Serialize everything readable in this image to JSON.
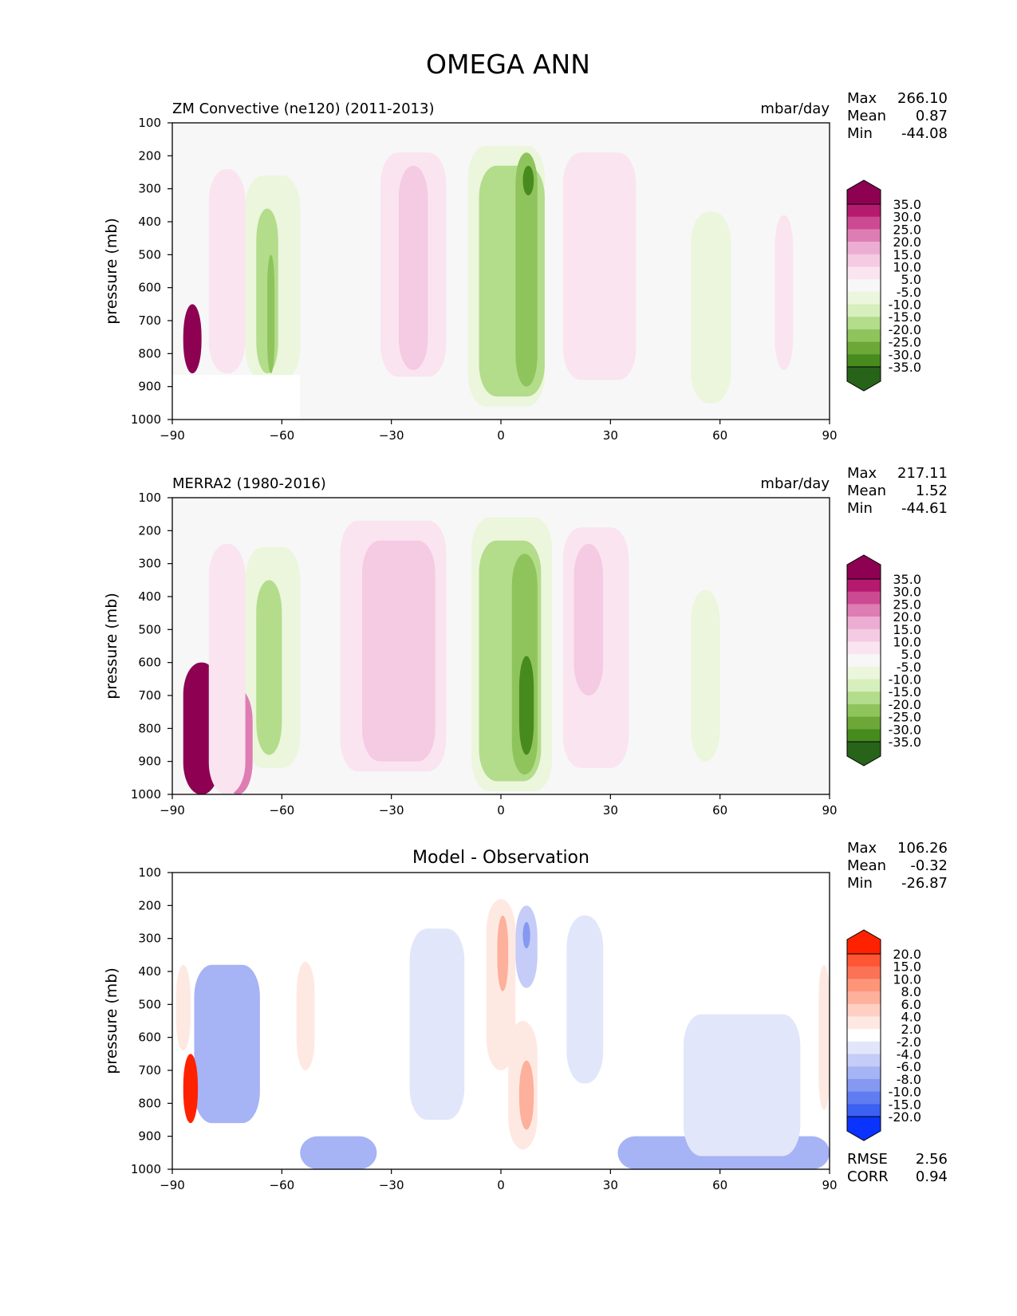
{
  "chart_data": {
    "type": "heatmap",
    "title": "OMEGA ANN",
    "panels": [
      {
        "title": "ZM Convective (ne120) (2011-2013)",
        "units": "mbar/day",
        "ylabel": "pressure (mb)",
        "x_ticks": [
          "−90",
          "−60",
          "−30",
          "0",
          "30",
          "60",
          "90"
        ],
        "y_ticks": [
          "100",
          "200",
          "300",
          "400",
          "500",
          "600",
          "700",
          "800",
          "900",
          "1000"
        ],
        "xlim": [
          -90,
          90
        ],
        "ylim": [
          1000,
          100
        ],
        "stats": [
          {
            "label": "Max",
            "value": "266.10"
          },
          {
            "label": "Mean",
            "value": "0.87"
          },
          {
            "label": "Min",
            "value": "-44.08"
          }
        ],
        "colorbar": [
          "35.0",
          "30.0",
          "25.0",
          "20.0",
          "15.0",
          "10.0",
          "5.0",
          "-5.0",
          "-10.0",
          "-15.0",
          "-20.0",
          "-25.0",
          "-30.0",
          "-35.0"
        ],
        "colors": [
          "#8e0152",
          "#b51a6f",
          "#cc4a91",
          "#de7db3",
          "#ecadd2",
          "#f5cae3",
          "#fae4f0",
          "#f7f7f7",
          "#ebf6dc",
          "#d6efbd",
          "#b3dc8b",
          "#8fc45c",
          "#6ca737",
          "#478b1f",
          "#276419"
        ],
        "features": [
          {
            "x": [
              -33,
              -15
            ],
            "p": [
              190,
              870
            ],
            "value": 7
          },
          {
            "x": [
              -28,
              -20
            ],
            "p": [
              230,
              850
            ],
            "value": 13
          },
          {
            "x": [
              -70,
              -55
            ],
            "p": [
              260,
              880
            ],
            "value": -8
          },
          {
            "x": [
              -67,
              -61
            ],
            "p": [
              360,
              860
            ],
            "value": -15
          },
          {
            "x": [
              -64,
              -62
            ],
            "p": [
              500,
              860
            ],
            "value": -22
          },
          {
            "x": [
              -9,
              12
            ],
            "p": [
              170,
              960
            ],
            "value": -8
          },
          {
            "x": [
              -6,
              12
            ],
            "p": [
              230,
              930
            ],
            "value": -15
          },
          {
            "x": [
              4,
              10
            ],
            "p": [
              190,
              900
            ],
            "value": -22
          },
          {
            "x": [
              6,
              9
            ],
            "p": [
              230,
              320
            ],
            "value": -30
          },
          {
            "x": [
              17,
              37
            ],
            "p": [
              190,
              880
            ],
            "value": 7
          },
          {
            "x": [
              52,
              63
            ],
            "p": [
              370,
              950
            ],
            "value": -8
          },
          {
            "x": [
              75,
              80
            ],
            "p": [
              380,
              850
            ],
            "value": 7
          },
          {
            "x": [
              -87,
              -82
            ],
            "p": [
              650,
              860
            ],
            "value": 40
          },
          {
            "x": [
              -80,
              -70
            ],
            "p": [
              240,
              860
            ],
            "value": 7
          }
        ],
        "masked": {
          "x": [
            -90,
            -55
          ],
          "p": [
            865,
            1000
          ]
        }
      },
      {
        "title": "MERRA2 (1980-2016)",
        "units": "mbar/day",
        "ylabel": "pressure (mb)",
        "x_ticks": [
          "−90",
          "−60",
          "−30",
          "0",
          "30",
          "60",
          "90"
        ],
        "y_ticks": [
          "100",
          "200",
          "300",
          "400",
          "500",
          "600",
          "700",
          "800",
          "900",
          "1000"
        ],
        "xlim": [
          -90,
          90
        ],
        "ylim": [
          1000,
          100
        ],
        "stats": [
          {
            "label": "Max",
            "value": "217.11"
          },
          {
            "label": "Mean",
            "value": "1.52"
          },
          {
            "label": "Min",
            "value": "-44.61"
          }
        ],
        "colorbar": [
          "35.0",
          "30.0",
          "25.0",
          "20.0",
          "15.0",
          "10.0",
          "5.0",
          "-5.0",
          "-10.0",
          "-15.0",
          "-20.0",
          "-25.0",
          "-30.0",
          "-35.0"
        ],
        "colors": [
          "#8e0152",
          "#b51a6f",
          "#cc4a91",
          "#de7db3",
          "#ecadd2",
          "#f5cae3",
          "#fae4f0",
          "#f7f7f7",
          "#ebf6dc",
          "#d6efbd",
          "#b3dc8b",
          "#8fc45c",
          "#6ca737",
          "#478b1f",
          "#276419"
        ],
        "features": [
          {
            "x": [
              -44,
              -15
            ],
            "p": [
              170,
              930
            ],
            "value": 7
          },
          {
            "x": [
              -38,
              -18
            ],
            "p": [
              230,
              900
            ],
            "value": 13
          },
          {
            "x": [
              -70,
              -55
            ],
            "p": [
              250,
              920
            ],
            "value": -8
          },
          {
            "x": [
              -67,
              -60
            ],
            "p": [
              350,
              880
            ],
            "value": -15
          },
          {
            "x": [
              -8,
              14
            ],
            "p": [
              160,
              990
            ],
            "value": -8
          },
          {
            "x": [
              -6,
              11
            ],
            "p": [
              230,
              960
            ],
            "value": -15
          },
          {
            "x": [
              3,
              10
            ],
            "p": [
              270,
              940
            ],
            "value": -22
          },
          {
            "x": [
              5,
              9
            ],
            "p": [
              580,
              880
            ],
            "value": -30
          },
          {
            "x": [
              17,
              35
            ],
            "p": [
              190,
              920
            ],
            "value": 7
          },
          {
            "x": [
              20,
              28
            ],
            "p": [
              240,
              700
            ],
            "value": 13
          },
          {
            "x": [
              52,
              60
            ],
            "p": [
              380,
              900
            ],
            "value": -8
          },
          {
            "x": [
              -87,
              -77
            ],
            "p": [
              600,
              1000
            ],
            "value": 40
          },
          {
            "x": [
              -76,
              -68
            ],
            "p": [
              680,
              1000
            ],
            "value": 25
          },
          {
            "x": [
              -80,
              -70
            ],
            "p": [
              240,
              1000
            ],
            "value": 7
          }
        ]
      },
      {
        "title": "Model - Observation",
        "units": "",
        "ylabel": "pressure (mb)",
        "x_ticks": [
          "−90",
          "−60",
          "−30",
          "0",
          "30",
          "60",
          "90"
        ],
        "y_ticks": [
          "100",
          "200",
          "300",
          "400",
          "500",
          "600",
          "700",
          "800",
          "900",
          "1000"
        ],
        "xlim": [
          -90,
          90
        ],
        "ylim": [
          1000,
          100
        ],
        "stats": [
          {
            "label": "Max",
            "value": "106.26"
          },
          {
            "label": "Mean",
            "value": "-0.32"
          },
          {
            "label": "Min",
            "value": "-26.87"
          }
        ],
        "colorbar": [
          "20.0",
          "15.0",
          "10.0",
          "8.0",
          "6.0",
          "4.0",
          "2.0",
          "-2.0",
          "-4.0",
          "-6.0",
          "-8.0",
          "-10.0",
          "-15.0",
          "-20.0"
        ],
        "colors": [
          "#ff2200",
          "#ff5533",
          "#fb7257",
          "#fd9579",
          "#fdb09c",
          "#fdd0c3",
          "#fee9e2",
          "#ffffff",
          "#e1e6fb",
          "#c4ccf7",
          "#a6b3f4",
          "#8598f2",
          "#5f7df0",
          "#3b60f2",
          "#0b33ff"
        ],
        "features": [
          {
            "x": [
              -4,
              4
            ],
            "p": [
              180,
              700
            ],
            "value": 4
          },
          {
            "x": [
              -1,
              2
            ],
            "p": [
              230,
              460
            ],
            "value": 8
          },
          {
            "x": [
              2,
              10
            ],
            "p": [
              550,
              940
            ],
            "value": 4
          },
          {
            "x": [
              5,
              9
            ],
            "p": [
              670,
              880
            ],
            "value": 8
          },
          {
            "x": [
              4,
              10
            ],
            "p": [
              200,
              450
            ],
            "value": -4
          },
          {
            "x": [
              6,
              8
            ],
            "p": [
              250,
              330
            ],
            "value": -8
          },
          {
            "x": [
              -25,
              -10
            ],
            "p": [
              270,
              850
            ],
            "value": -3
          },
          {
            "x": [
              18,
              28
            ],
            "p": [
              230,
              740
            ],
            "value": -3
          },
          {
            "x": [
              -56,
              -51
            ],
            "p": [
              370,
              700
            ],
            "value": 3
          },
          {
            "x": [
              -55,
              -34
            ],
            "p": [
              900,
              1000
            ],
            "value": -6
          },
          {
            "x": [
              32,
              90
            ],
            "p": [
              900,
              1000
            ],
            "value": -7
          },
          {
            "x": [
              -84,
              -66
            ],
            "p": [
              380,
              860
            ],
            "value": -6
          },
          {
            "x": [
              -87,
              -83
            ],
            "p": [
              650,
              860
            ],
            "value": 25
          },
          {
            "x": [
              -89,
              -85
            ],
            "p": [
              380,
              640
            ],
            "value": 3
          },
          {
            "x": [
              87,
              90
            ],
            "p": [
              380,
              820
            ],
            "value": 3
          },
          {
            "x": [
              50,
              82
            ],
            "p": [
              530,
              960
            ],
            "value": -3
          }
        ],
        "masked": {
          "x": [
            -90,
            -65
          ],
          "p": [
            865,
            1000
          ]
        },
        "metrics": [
          {
            "label": "RMSE",
            "value": "2.56"
          },
          {
            "label": "CORR",
            "value": "0.94"
          }
        ]
      }
    ]
  }
}
